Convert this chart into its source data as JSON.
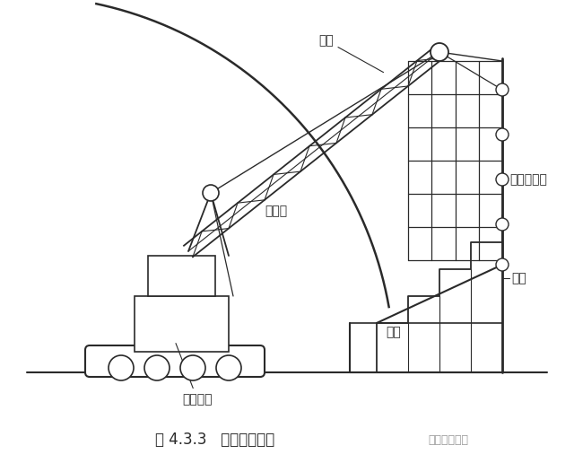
{
  "bg_color": "#ffffff",
  "line_color": "#2a2a2a",
  "title": "图 4.3.3   高空组拼吊装",
  "watermark": "现代钢构网架",
  "labels": {
    "roof": "穹顶",
    "scaffold": "脚手架",
    "crane": "履带吊车",
    "small_unit": "小单元网架",
    "grandstand": "看台",
    "column": "砼柱"
  }
}
